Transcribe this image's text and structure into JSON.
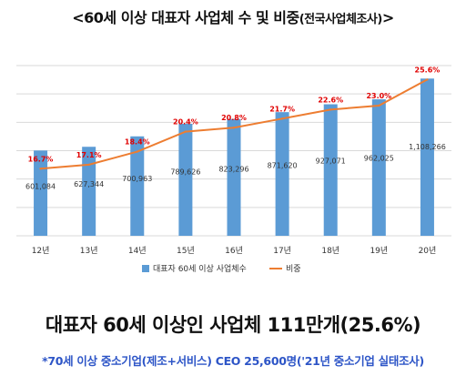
{
  "header": {
    "title_main": "<60세 이상 대표자 사업체 수 및 비중",
    "title_sub": "(전국사업체조사)",
    "title_end": ">"
  },
  "headline": "대표자 60세 이상인 사업체 111만개(25.6%)",
  "footnote": "*70세 이상 중소기업(제조+서비스) CEO 25,600명('21년 중소기업 실태조사)",
  "colors": {
    "bar": "#5b9bd5",
    "line": "#ed7d31",
    "pct_label": "#e00000",
    "grid": "#d9d9d9"
  },
  "chart_data": {
    "type": "bar",
    "categories": [
      "12년",
      "13년",
      "14년",
      "15년",
      "16년",
      "17년",
      "18년",
      "19년",
      "20년"
    ],
    "series": [
      {
        "name": "대표자 60세 이상 사업체수",
        "type": "bar",
        "values": [
          601084,
          627344,
          700963,
          789626,
          823296,
          871620,
          927071,
          962025,
          1108266
        ],
        "labels": [
          "601,084",
          "627,344",
          "700,963",
          "789,626",
          "823,296",
          "871,620",
          "927,071",
          "962,025",
          "1,108,266"
        ]
      },
      {
        "name": "비중",
        "type": "line",
        "values": [
          16.7,
          17.1,
          18.4,
          20.4,
          20.8,
          21.7,
          22.6,
          23.0,
          25.6
        ],
        "labels": [
          "16.7%",
          "17.1%",
          "18.4%",
          "20.4%",
          "20.8%",
          "21.7%",
          "22.6%",
          "23.0%",
          "25.6%"
        ]
      }
    ],
    "ylim": [
      0,
      1200000
    ],
    "ylim_secondary": [
      10,
      27
    ],
    "grid": true,
    "legend": "bottom"
  }
}
